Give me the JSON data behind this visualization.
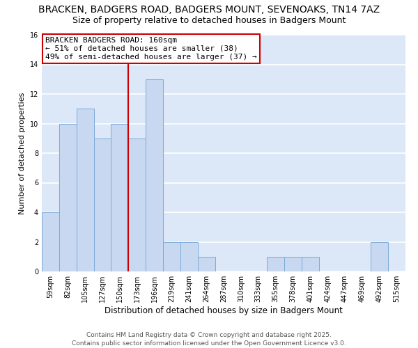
{
  "title": "BRACKEN, BADGERS ROAD, BADGERS MOUNT, SEVENOAKS, TN14 7AZ",
  "subtitle": "Size of property relative to detached houses in Badgers Mount",
  "xlabel": "Distribution of detached houses by size in Badgers Mount",
  "ylabel": "Number of detached properties",
  "bar_labels": [
    "59sqm",
    "82sqm",
    "105sqm",
    "127sqm",
    "150sqm",
    "173sqm",
    "196sqm",
    "219sqm",
    "241sqm",
    "264sqm",
    "287sqm",
    "310sqm",
    "333sqm",
    "355sqm",
    "378sqm",
    "401sqm",
    "424sqm",
    "447sqm",
    "469sqm",
    "492sqm",
    "515sqm"
  ],
  "bar_values": [
    4,
    10,
    11,
    9,
    10,
    9,
    13,
    2,
    2,
    1,
    0,
    0,
    0,
    1,
    1,
    1,
    0,
    0,
    0,
    2,
    0
  ],
  "bar_color": "#c8d8f0",
  "bar_edge_color": "#7aaad8",
  "fig_background_color": "#ffffff",
  "plot_background_color": "#dce8f8",
  "grid_color": "#ffffff",
  "annotation_box_text": "BRACKEN BADGERS ROAD: 160sqm\n← 51% of detached houses are smaller (38)\n49% of semi-detached houses are larger (37) →",
  "redline_x": 4.5,
  "ylim": [
    0,
    16
  ],
  "yticks": [
    0,
    2,
    4,
    6,
    8,
    10,
    12,
    14,
    16
  ],
  "footnote_line1": "Contains HM Land Registry data © Crown copyright and database right 2025.",
  "footnote_line2": "Contains public sector information licensed under the Open Government Licence v3.0.",
  "title_fontsize": 10,
  "subtitle_fontsize": 9,
  "xlabel_fontsize": 8.5,
  "ylabel_fontsize": 8,
  "tick_fontsize": 7,
  "annotation_fontsize": 8,
  "footnote_fontsize": 6.5
}
